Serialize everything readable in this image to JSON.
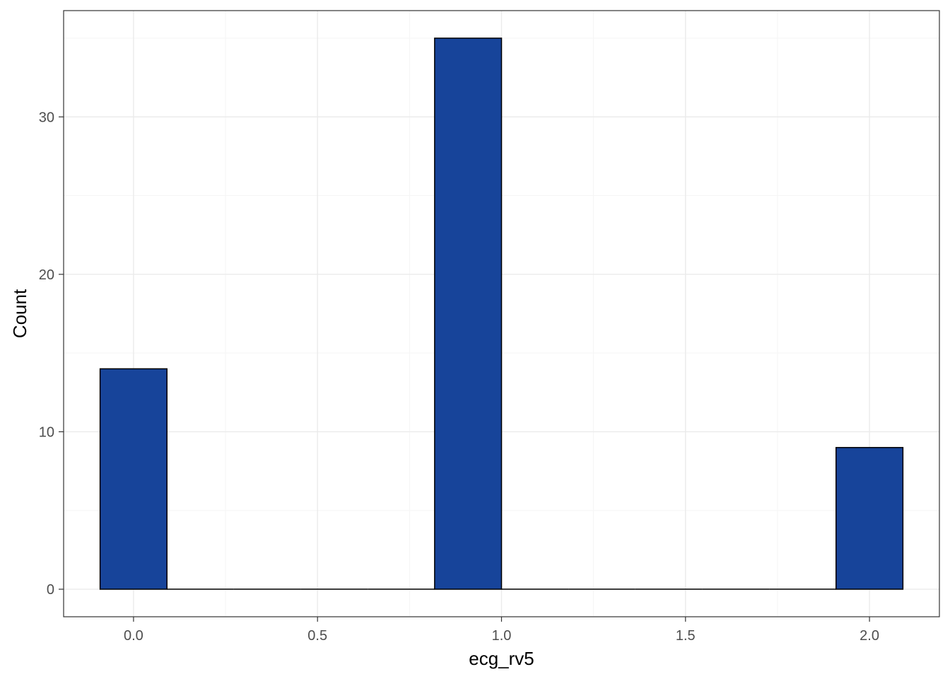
{
  "chart_data": {
    "type": "bar",
    "title": "",
    "xlabel": "ecg_rv5",
    "ylabel": "Count",
    "xlim": [
      -0.19,
      2.19
    ],
    "ylim": [
      -1.75,
      36.75
    ],
    "x_ticks": [
      "0.0",
      "0.5",
      "1.0",
      "1.5",
      "2.0"
    ],
    "x_tick_values": [
      0.0,
      0.5,
      1.0,
      1.5,
      2.0
    ],
    "y_ticks": [
      "0",
      "10",
      "20",
      "30"
    ],
    "y_tick_values": [
      0,
      10,
      20,
      30
    ],
    "bin_width": 0.1818,
    "bins": [
      {
        "center": 0.0,
        "count": 14
      },
      {
        "center": 0.1818,
        "count": 0
      },
      {
        "center": 0.3636,
        "count": 0
      },
      {
        "center": 0.5455,
        "count": 0
      },
      {
        "center": 0.7273,
        "count": 0
      },
      {
        "center": 0.9091,
        "count": 35
      },
      {
        "center": 1.0909,
        "count": 0
      },
      {
        "center": 1.2727,
        "count": 0
      },
      {
        "center": 1.4545,
        "count": 0
      },
      {
        "center": 1.6364,
        "count": 0
      },
      {
        "center": 1.8182,
        "count": 0
      },
      {
        "center": 2.0,
        "count": 9
      }
    ],
    "grid": true,
    "legend": "none",
    "colors": {
      "bar_fill": "#17449A",
      "bar_stroke": "#000000",
      "grid_major": "#EBEBEB",
      "grid_minor": "#F5F5F5",
      "panel_border": "#333333",
      "tick_label": "#4D4D4D"
    }
  }
}
